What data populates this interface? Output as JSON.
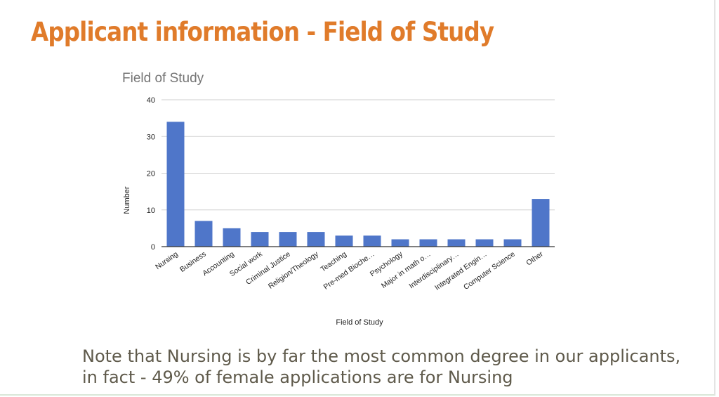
{
  "slide": {
    "title": "Applicant information - Field of Study",
    "note": "Note that Nursing is by far the most common degree in our applicants, in fact - 49% of female applications are for Nursing"
  },
  "colors": {
    "title": "#e07b2a",
    "note": "#5f5a4b",
    "bar": "#4f76c9",
    "grid": "#cfcfcf",
    "axis": "#333333",
    "chart_title": "#757575",
    "text": "#222222"
  },
  "chart_data": {
    "type": "bar",
    "title": "Field of Study",
    "xlabel": "Field of Study",
    "ylabel": "Number",
    "ylim": [
      0,
      40
    ],
    "yticks": [
      0,
      10,
      20,
      30,
      40
    ],
    "grid": true,
    "categories": [
      "Nursing",
      "Business",
      "Accounting",
      "Social work",
      "Criminal Justice",
      "Religion/Theology",
      "Teaching",
      "Pre-med Bioche…",
      "Psychology",
      "Major in math o…",
      "Interdisciplinary…",
      "Integrated Engin…",
      "Computer Science",
      "Other"
    ],
    "values": [
      34,
      7,
      5,
      4,
      4,
      4,
      3,
      3,
      2,
      2,
      2,
      2,
      2,
      13
    ]
  }
}
